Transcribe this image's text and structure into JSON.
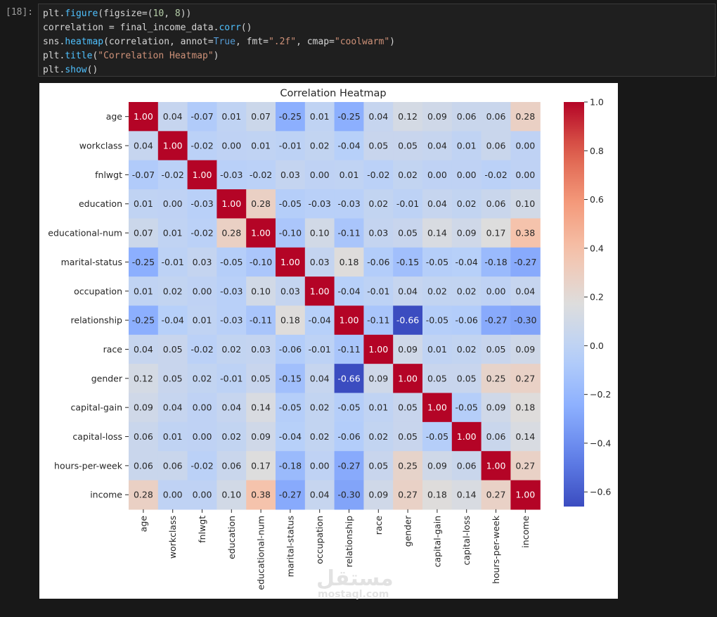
{
  "cell": {
    "prompt": "[18]:",
    "code_lines": [
      [
        {
          "t": "plt.",
          "c": ""
        },
        {
          "t": "figure",
          "c": "fn"
        },
        {
          "t": "(figsize",
          "c": ""
        },
        {
          "t": "=",
          "c": "op"
        },
        {
          "t": "(",
          "c": ""
        },
        {
          "t": "10",
          "c": "num"
        },
        {
          "t": ", ",
          "c": ""
        },
        {
          "t": "8",
          "c": "num"
        },
        {
          "t": "))",
          "c": ""
        }
      ],
      [
        {
          "t": "correlation ",
          "c": ""
        },
        {
          "t": "=",
          "c": "op"
        },
        {
          "t": " final_income_data.",
          "c": ""
        },
        {
          "t": "corr",
          "c": "fn"
        },
        {
          "t": "()",
          "c": ""
        }
      ],
      [
        {
          "t": "sns.",
          "c": ""
        },
        {
          "t": "heatmap",
          "c": "fn"
        },
        {
          "t": "(correlation, annot",
          "c": ""
        },
        {
          "t": "=",
          "c": "op"
        },
        {
          "t": "True",
          "c": "kw"
        },
        {
          "t": ", fmt",
          "c": ""
        },
        {
          "t": "=",
          "c": "op"
        },
        {
          "t": "\".2f\"",
          "c": "str"
        },
        {
          "t": ", cmap",
          "c": ""
        },
        {
          "t": "=",
          "c": "op"
        },
        {
          "t": "\"coolwarm\"",
          "c": "str"
        },
        {
          "t": ")",
          "c": ""
        }
      ],
      [
        {
          "t": "plt.",
          "c": ""
        },
        {
          "t": "title",
          "c": "fn"
        },
        {
          "t": "(",
          "c": ""
        },
        {
          "t": "\"Correlation Heatmap\"",
          "c": "str"
        },
        {
          "t": ")",
          "c": ""
        }
      ],
      [
        {
          "t": "plt.",
          "c": ""
        },
        {
          "t": "show",
          "c": "fn"
        },
        {
          "t": "()",
          "c": ""
        }
      ]
    ]
  },
  "colors": {
    "background": "#181818",
    "cell_bg": "#1f1f1f",
    "code_text": "#d4d4d4",
    "function": "#4fc1ff",
    "keyword": "#569cd6",
    "number": "#b5cea8",
    "string": "#ce9178"
  },
  "watermark": {
    "arabic": "مستقل",
    "latin": "mostaql.com"
  },
  "chart_data": {
    "type": "heatmap",
    "title": "Correlation Heatmap",
    "colormap": "coolwarm",
    "labels": [
      "age",
      "workclass",
      "fnlwgt",
      "education",
      "educational-num",
      "marital-status",
      "occupation",
      "relationship",
      "race",
      "gender",
      "capital-gain",
      "capital-loss",
      "hours-per-week",
      "income"
    ],
    "matrix": [
      [
        1.0,
        0.04,
        -0.07,
        0.01,
        0.07,
        -0.25,
        0.01,
        -0.25,
        0.04,
        0.12,
        0.09,
        0.06,
        0.06,
        0.28
      ],
      [
        0.04,
        1.0,
        -0.02,
        -0.0,
        0.01,
        -0.01,
        0.02,
        -0.04,
        0.05,
        0.05,
        0.04,
        0.01,
        0.06,
        -0.0
      ],
      [
        -0.07,
        -0.02,
        1.0,
        -0.03,
        -0.02,
        0.03,
        0.0,
        0.01,
        -0.02,
        0.02,
        -0.0,
        -0.0,
        -0.02,
        -0.0
      ],
      [
        0.01,
        -0.0,
        -0.03,
        1.0,
        0.28,
        -0.05,
        -0.03,
        -0.03,
        0.02,
        -0.01,
        0.04,
        0.02,
        0.06,
        0.1
      ],
      [
        0.07,
        0.01,
        -0.02,
        0.28,
        1.0,
        -0.1,
        0.1,
        -0.11,
        0.03,
        0.05,
        0.14,
        0.09,
        0.17,
        0.38
      ],
      [
        -0.25,
        -0.01,
        0.03,
        -0.05,
        -0.1,
        1.0,
        0.03,
        0.18,
        -0.06,
        -0.15,
        -0.05,
        -0.04,
        -0.18,
        -0.27
      ],
      [
        0.01,
        0.02,
        0.0,
        -0.03,
        0.1,
        0.03,
        1.0,
        -0.04,
        -0.01,
        0.04,
        0.02,
        0.02,
        -0.0,
        0.04
      ],
      [
        -0.25,
        -0.04,
        0.01,
        -0.03,
        -0.11,
        0.18,
        -0.04,
        1.0,
        -0.11,
        -0.66,
        -0.05,
        -0.06,
        -0.27,
        -0.3
      ],
      [
        0.04,
        0.05,
        -0.02,
        0.02,
        0.03,
        -0.06,
        -0.01,
        -0.11,
        1.0,
        0.09,
        0.01,
        0.02,
        0.05,
        0.09
      ],
      [
        0.12,
        0.05,
        0.02,
        -0.01,
        0.05,
        -0.15,
        0.04,
        -0.66,
        0.09,
        1.0,
        0.05,
        0.05,
        0.25,
        0.27
      ],
      [
        0.09,
        0.04,
        -0.0,
        0.04,
        0.14,
        -0.05,
        0.02,
        -0.05,
        0.01,
        0.05,
        1.0,
        -0.05,
        0.09,
        0.18
      ],
      [
        0.06,
        0.01,
        -0.0,
        0.02,
        0.09,
        -0.04,
        0.02,
        -0.06,
        0.02,
        0.05,
        -0.05,
        1.0,
        0.06,
        0.14
      ],
      [
        0.06,
        0.06,
        -0.02,
        0.06,
        0.17,
        -0.18,
        -0.0,
        -0.27,
        0.05,
        0.25,
        0.09,
        0.06,
        1.0,
        0.27
      ],
      [
        0.28,
        -0.0,
        -0.0,
        0.1,
        0.38,
        -0.27,
        0.04,
        -0.3,
        0.09,
        0.27,
        0.18,
        0.14,
        0.27,
        1.0
      ]
    ],
    "annotation_format": ".2f",
    "vmin": -0.66,
    "vmax": 1.0,
    "colorbar_ticks": [
      "1.0",
      "0.8",
      "0.6",
      "0.4",
      "0.2",
      "0.0",
      "−0.2",
      "−0.4",
      "−0.6"
    ],
    "colorbar_tick_values": [
      1.0,
      0.8,
      0.6,
      0.4,
      0.2,
      0.0,
      -0.2,
      -0.4,
      -0.6
    ]
  }
}
